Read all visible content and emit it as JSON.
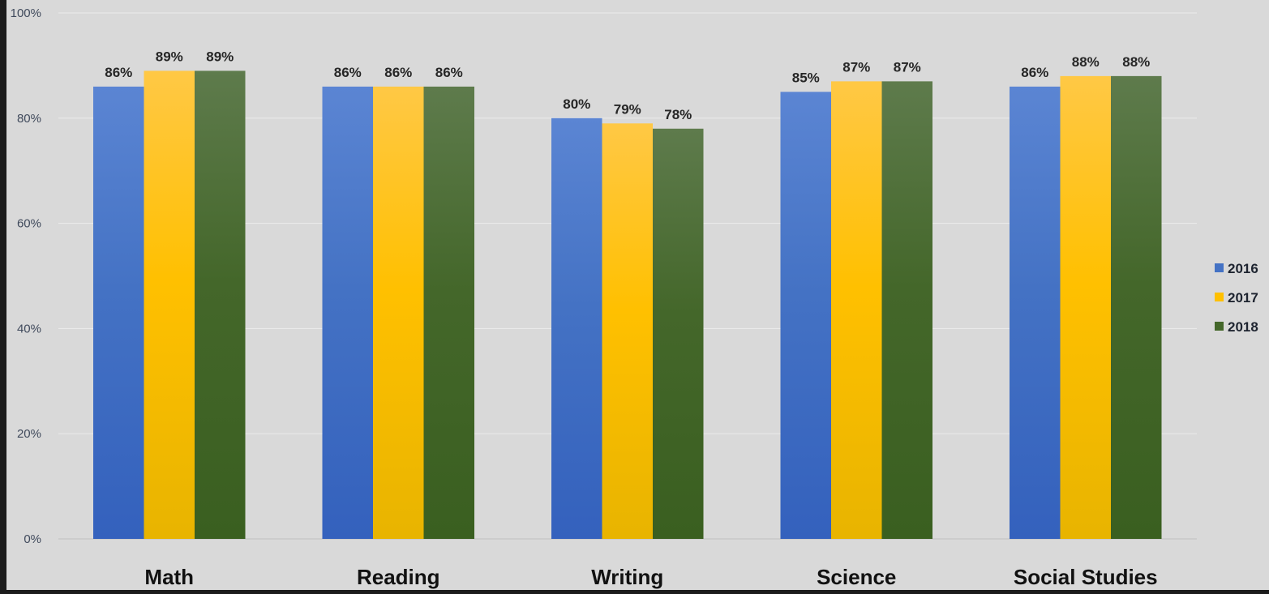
{
  "chart_data": {
    "type": "bar",
    "title": "",
    "xlabel": "",
    "ylabel": "",
    "categories": [
      "Math",
      "Reading",
      "Writing",
      "Science",
      "Social Studies"
    ],
    "series": [
      {
        "name": "2016",
        "values": [
          86,
          86,
          80,
          85,
          86
        ],
        "labels": [
          "86%",
          "86%",
          "80%",
          "85%",
          "86%"
        ],
        "color": "#4472c4",
        "color_light": "#5b85d3",
        "color_dark": "#3461bd"
      },
      {
        "name": "2017",
        "values": [
          89,
          86,
          79,
          87,
          88
        ],
        "labels": [
          "89%",
          "86%",
          "79%",
          "87%",
          "88%"
        ],
        "color": "#ffc000",
        "color_light": "#ffc845",
        "color_dark": "#e8b400"
      },
      {
        "name": "2018",
        "values": [
          89,
          86,
          78,
          87,
          88
        ],
        "labels": [
          "89%",
          "86%",
          "78%",
          "87%",
          "88%"
        ],
        "color": "#44672a",
        "color_light": "#5e7b4c",
        "color_dark": "#3a5f20"
      }
    ],
    "ylim": [
      0,
      100
    ],
    "yticks": [
      0,
      20,
      40,
      60,
      80,
      100
    ],
    "ytick_labels": [
      "0%",
      "20%",
      "40%",
      "60%",
      "80%",
      "100%"
    ],
    "grid": true,
    "legend_position": "right",
    "background_color": "#d9d9d9",
    "frame_color": "#1c1c1c",
    "gridline_color": "#ebebeb"
  }
}
